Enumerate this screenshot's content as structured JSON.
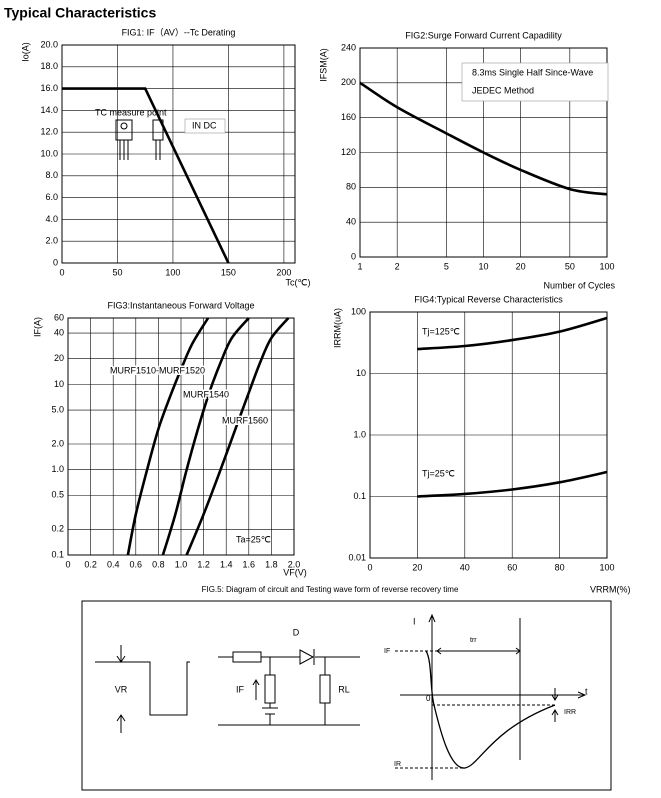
{
  "page_title": "Typical Characteristics",
  "chart_data": [
    {
      "type": "line",
      "title": "FIG1: IF（AV）--Tc  Derating",
      "xlabel": "Tc(℃)",
      "ylabel": "Io(A)",
      "xlim": [
        0,
        210
      ],
      "ylim": [
        0,
        20
      ],
      "xticks": [
        0,
        50,
        100,
        150,
        200
      ],
      "yticks": [
        0,
        {
          "value": 2,
          "label": "2.0"
        },
        {
          "value": 4,
          "label": "4.0"
        },
        {
          "value": 6,
          "label": "6.0"
        },
        {
          "value": 8,
          "label": "8.0"
        },
        {
          "value": 10,
          "label": "10.0"
        },
        {
          "value": 12,
          "label": "12.0"
        },
        {
          "value": 14,
          "label": "14.0"
        },
        {
          "value": 16,
          "label": "16.0"
        },
        {
          "value": 18,
          "label": "18.0"
        },
        {
          "value": 20,
          "label": "20.0"
        }
      ],
      "grid": true,
      "series": [
        {
          "color": "#000000",
          "x": [
            0,
            75,
            150
          ],
          "values": [
            16,
            16,
            0
          ]
        }
      ],
      "annotations": [
        "TC measure point",
        "IN DC"
      ]
    },
    {
      "type": "line",
      "title": "FIG2:Surge Forward Current Capadility",
      "xlabel": "Number of Cycles",
      "ylabel": "IFSM(A)",
      "xscale": "log",
      "xlim": [
        1,
        100
      ],
      "ylim": [
        0,
        240
      ],
      "xticks": [
        1,
        2,
        5,
        10,
        20,
        50,
        100
      ],
      "yticks": [
        0,
        40,
        80,
        120,
        160,
        200,
        240
      ],
      "grid": true,
      "series": [
        {
          "color": "#000000",
          "x": [
            1,
            2,
            5,
            10,
            20,
            50,
            100
          ],
          "values": [
            200,
            172,
            142,
            120,
            100,
            78,
            72
          ]
        }
      ],
      "annotations": [
        "8.3ms Single Half Since-Wave",
        "JEDEC Method"
      ]
    },
    {
      "type": "line",
      "title": "FIG3:Instantaneous Forward Voltage",
      "xlabel": "VF(V)",
      "ylabel": "IF(A)",
      "yscale": "log",
      "xlim": [
        0,
        2
      ],
      "ylim": [
        0.1,
        60
      ],
      "xticks": [
        0,
        0.2,
        0.4,
        0.6,
        0.8,
        {
          "value": 1,
          "label": "1.0"
        },
        1.2,
        1.4,
        1.6,
        1.8,
        {
          "value": 2,
          "label": "2.0"
        }
      ],
      "yticks": [
        0.1,
        0.2,
        0.5,
        {
          "value": 1,
          "label": "1.0"
        },
        {
          "value": 2,
          "label": "2.0"
        },
        {
          "value": 5,
          "label": "5.0"
        },
        10,
        20,
        40,
        60
      ],
      "grid": true,
      "series": [
        {
          "name": "MURF1510-MURF1520",
          "color": "#000000",
          "x": [
            0.53,
            0.6,
            0.7,
            0.8,
            0.9,
            1.0,
            1.1,
            1.24
          ],
          "values": [
            0.1,
            0.3,
            1,
            3,
            7,
            15,
            30,
            60
          ]
        },
        {
          "name": "MURF1540",
          "color": "#000000",
          "x": [
            0.84,
            0.95,
            1.05,
            1.15,
            1.25,
            1.35,
            1.45,
            1.6
          ],
          "values": [
            0.1,
            0.3,
            1,
            3,
            8,
            18,
            35,
            60
          ]
        },
        {
          "name": "MURF1560",
          "color": "#000000",
          "x": [
            1.05,
            1.2,
            1.35,
            1.5,
            1.6,
            1.7,
            1.8,
            1.95
          ],
          "values": [
            0.1,
            0.3,
            1,
            3.5,
            8,
            18,
            35,
            60
          ]
        }
      ],
      "annotations": [
        "Ta=25℃"
      ]
    },
    {
      "type": "line",
      "title": "FIG4:Typical Reverse Characteristics",
      "xlabel": "VRRM(%)",
      "ylabel": "IRRM(uA)",
      "yscale": "log",
      "xlim": [
        0,
        100
      ],
      "ylim": [
        0.01,
        100
      ],
      "xticks": [
        0,
        20,
        40,
        60,
        80,
        100
      ],
      "yticks": [
        0.01,
        0.1,
        {
          "value": 1,
          "label": "1.0"
        },
        10,
        100
      ],
      "grid": true,
      "series": [
        {
          "name": "Tj=125℃",
          "color": "#000000",
          "x": [
            20,
            40,
            60,
            80,
            100
          ],
          "values": [
            25,
            28,
            35,
            48,
            80
          ]
        },
        {
          "name": "Tj=25℃",
          "color": "#000000",
          "x": [
            20,
            40,
            60,
            80,
            100
          ],
          "values": [
            0.1,
            0.11,
            0.13,
            0.17,
            0.25
          ]
        }
      ],
      "annotations": []
    }
  ],
  "diagram": {
    "title": "FIG.5: Diagram of circuit and Testing wave form of reverse recovery time",
    "labels": {
      "vr": "VR",
      "d": "D",
      "if": "IF",
      "rl": "RL",
      "i": "I",
      "if2": "IF",
      "trr": "trr",
      "t": "t",
      "zero": "0",
      "irr": "IRR",
      "ir": "IR"
    }
  }
}
